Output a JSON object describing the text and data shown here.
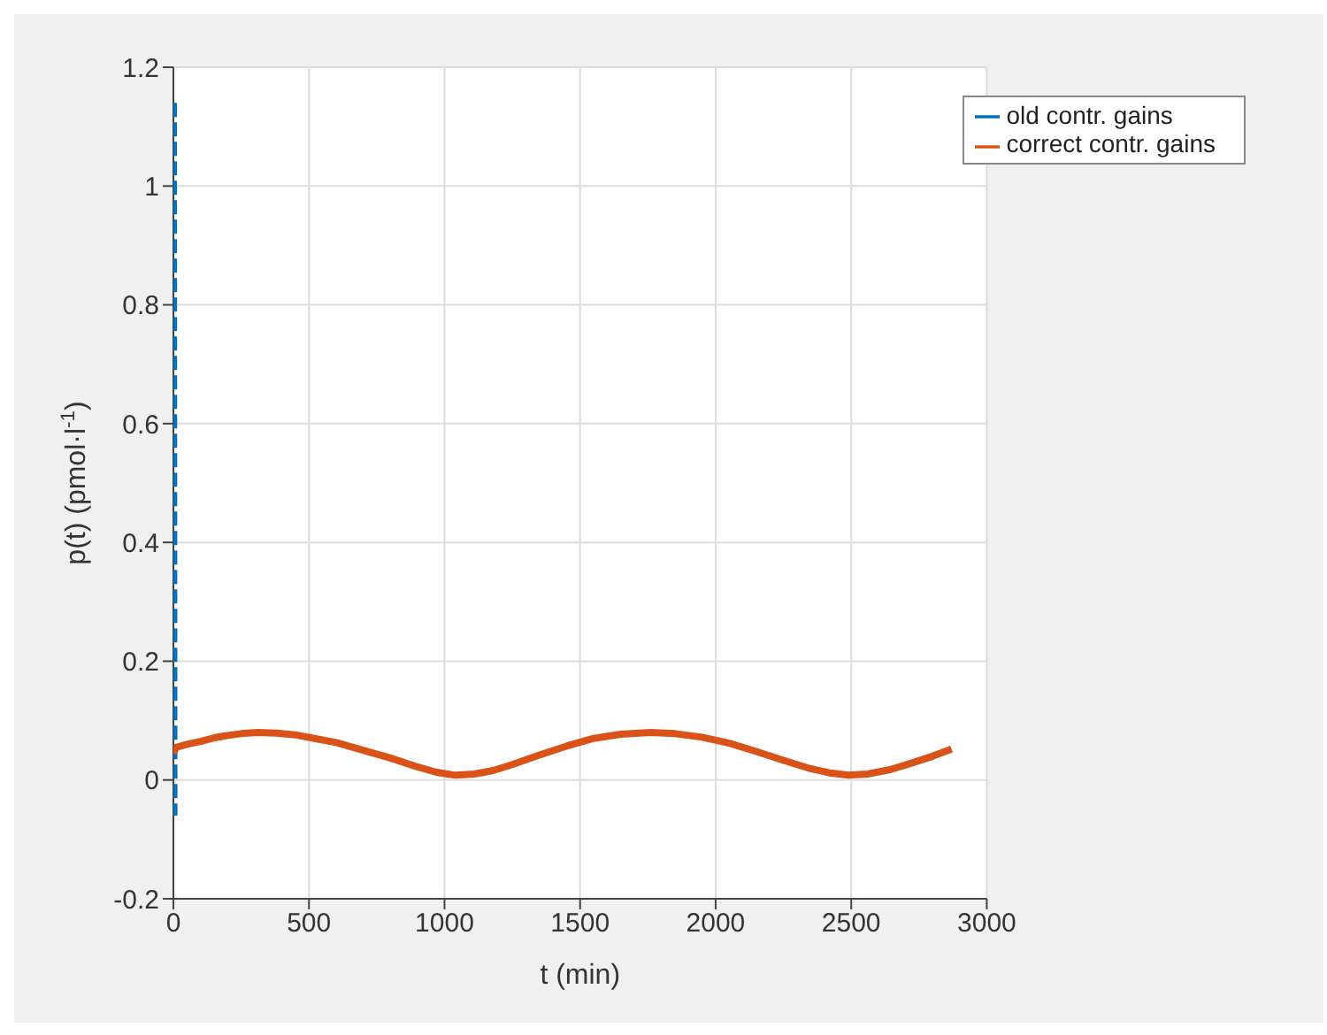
{
  "chart_data": {
    "type": "line",
    "xlabel": "t (min)",
    "ylabel": "p(t) (pmol·l$^{-1}$)",
    "xlim": [
      0,
      3000
    ],
    "xticks": [
      0,
      500,
      1000,
      1500,
      2000,
      2500,
      3000
    ],
    "ylim": [
      -0.2,
      1.2
    ],
    "yticks": [
      -0.2,
      0,
      0.2,
      0.4,
      0.6,
      0.8,
      1,
      1.2
    ],
    "grid": true,
    "legend": "top right",
    "marker": "none",
    "series": [
      {
        "name": "old contr. gains",
        "color": "#0072bd",
        "line_style": "dashed",
        "x": [
          0,
          2
        ],
        "values": [
          1.14,
          -0.06
        ]
      },
      {
        "name": "correct contr. gains",
        "color": "#d95319",
        "line_style": "solid",
        "x": [
          0,
          10,
          50,
          100,
          150,
          200,
          250,
          310,
          380,
          450,
          520,
          600,
          700,
          800,
          900,
          970,
          1040,
          1110,
          1180,
          1250,
          1350,
          1450,
          1550,
          1650,
          1760,
          1850,
          1950,
          2050,
          2150,
          2250,
          2350,
          2420,
          2490,
          2560,
          2640,
          2720,
          2800,
          2870
        ],
        "values": [
          0.045,
          0.055,
          0.06,
          0.065,
          0.071,
          0.075,
          0.078,
          0.08,
          0.079,
          0.076,
          0.07,
          0.063,
          0.05,
          0.037,
          0.022,
          0.013,
          0.008,
          0.01,
          0.016,
          0.026,
          0.042,
          0.057,
          0.07,
          0.077,
          0.08,
          0.078,
          0.072,
          0.062,
          0.048,
          0.033,
          0.019,
          0.012,
          0.008,
          0.01,
          0.017,
          0.028,
          0.04,
          0.052
        ]
      }
    ]
  }
}
